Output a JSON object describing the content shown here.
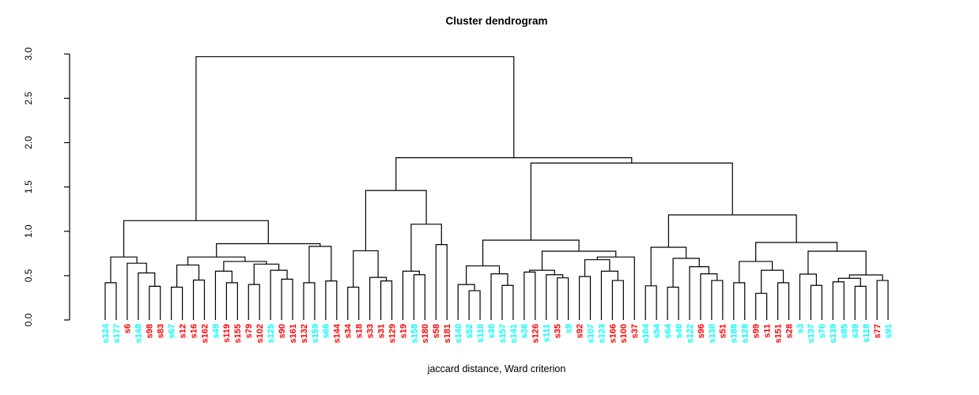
{
  "chart_data": {
    "type": "dendrogram",
    "title": "Cluster dendrogram",
    "xlabel": "jaccard distance, Ward criterion",
    "ylabel": "",
    "ylim": [
      0,
      3
    ],
    "yticks": [
      "0.0",
      "0.5",
      "1.0",
      "1.5",
      "2.0",
      "2.5",
      "3.0"
    ],
    "grid": false,
    "legend": "none",
    "label_colors": {
      "cluster_a": "#00FFFF",
      "cluster_b": "#FF0000"
    },
    "line_color": "#000000",
    "leaves": [
      {
        "label": "s124",
        "color": "#00FFFF"
      },
      {
        "label": "s177",
        "color": "#00FFFF"
      },
      {
        "label": "s6",
        "color": "#FF0000"
      },
      {
        "label": "s148",
        "color": "#00FFFF"
      },
      {
        "label": "s98",
        "color": "#FF0000"
      },
      {
        "label": "s83",
        "color": "#FF0000"
      },
      {
        "label": "s67",
        "color": "#00FFFF"
      },
      {
        "label": "s12",
        "color": "#FF0000"
      },
      {
        "label": "s16",
        "color": "#FF0000"
      },
      {
        "label": "s162",
        "color": "#FF0000"
      },
      {
        "label": "s49",
        "color": "#00FFFF"
      },
      {
        "label": "s119",
        "color": "#FF0000"
      },
      {
        "label": "s155",
        "color": "#FF0000"
      },
      {
        "label": "s79",
        "color": "#FF0000"
      },
      {
        "label": "s102",
        "color": "#FF0000"
      },
      {
        "label": "s125",
        "color": "#00FFFF"
      },
      {
        "label": "s90",
        "color": "#FF0000"
      },
      {
        "label": "s161",
        "color": "#FF0000"
      },
      {
        "label": "s132",
        "color": "#FF0000"
      },
      {
        "label": "s159",
        "color": "#00FFFF"
      },
      {
        "label": "s66",
        "color": "#00FFFF"
      },
      {
        "label": "s144",
        "color": "#FF0000"
      },
      {
        "label": "s34",
        "color": "#FF0000"
      },
      {
        "label": "s18",
        "color": "#FF0000"
      },
      {
        "label": "s33",
        "color": "#FF0000"
      },
      {
        "label": "s31",
        "color": "#FF0000"
      },
      {
        "label": "s129",
        "color": "#FF0000"
      },
      {
        "label": "s19",
        "color": "#FF0000"
      },
      {
        "label": "s158",
        "color": "#00FFFF"
      },
      {
        "label": "s180",
        "color": "#FF0000"
      },
      {
        "label": "s58",
        "color": "#FF0000"
      },
      {
        "label": "s181",
        "color": "#FF0000"
      },
      {
        "label": "s140",
        "color": "#00FFFF"
      },
      {
        "label": "s52",
        "color": "#00FFFF"
      },
      {
        "label": "s110",
        "color": "#00FFFF"
      },
      {
        "label": "s30",
        "color": "#00FFFF"
      },
      {
        "label": "s157",
        "color": "#00FFFF"
      },
      {
        "label": "s141",
        "color": "#00FFFF"
      },
      {
        "label": "s36",
        "color": "#00FFFF"
      },
      {
        "label": "s126",
        "color": "#FF0000"
      },
      {
        "label": "s111",
        "color": "#00FFFF"
      },
      {
        "label": "s35",
        "color": "#FF0000"
      },
      {
        "label": "s9",
        "color": "#00FFFF"
      },
      {
        "label": "s92",
        "color": "#FF0000"
      },
      {
        "label": "s107",
        "color": "#00FFFF"
      },
      {
        "label": "s123",
        "color": "#00FFFF"
      },
      {
        "label": "s166",
        "color": "#FF0000"
      },
      {
        "label": "s100",
        "color": "#FF0000"
      },
      {
        "label": "s37",
        "color": "#FF0000"
      },
      {
        "label": "s104",
        "color": "#00FFFF"
      },
      {
        "label": "s54",
        "color": "#00FFFF"
      },
      {
        "label": "s64",
        "color": "#00FFFF"
      },
      {
        "label": "s40",
        "color": "#00FFFF"
      },
      {
        "label": "s122",
        "color": "#00FFFF"
      },
      {
        "label": "s96",
        "color": "#FF0000"
      },
      {
        "label": "s130",
        "color": "#00FFFF"
      },
      {
        "label": "s51",
        "color": "#FF0000"
      },
      {
        "label": "s188",
        "color": "#00FFFF"
      },
      {
        "label": "s128",
        "color": "#00FFFF"
      },
      {
        "label": "s99",
        "color": "#FF0000"
      },
      {
        "label": "s11",
        "color": "#FF0000"
      },
      {
        "label": "s151",
        "color": "#FF0000"
      },
      {
        "label": "s28",
        "color": "#FF0000"
      },
      {
        "label": "s3",
        "color": "#00FFFF"
      },
      {
        "label": "s137",
        "color": "#00FFFF"
      },
      {
        "label": "s70",
        "color": "#00FFFF"
      },
      {
        "label": "s139",
        "color": "#00FFFF"
      },
      {
        "label": "s85",
        "color": "#00FFFF"
      },
      {
        "label": "s39",
        "color": "#00FFFF"
      },
      {
        "label": "s118",
        "color": "#00FFFF"
      },
      {
        "label": "s77",
        "color": "#FF0000"
      },
      {
        "label": "s91",
        "color": "#00FFFF"
      }
    ],
    "tree": [
      2.97,
      [
        1.12,
        [
          0.71,
          [
            0.42,
            "s124",
            "s177"
          ],
          [
            0.64,
            "s6",
            [
              0.53,
              "s148",
              [
                0.38,
                "s98",
                "s83"
              ]
            ]
          ]
        ],
        [
          0.86,
          [
            0.71,
            [
              0.62,
              [
                0.37,
                "s67",
                "s12"
              ],
              [
                0.45,
                "s16",
                "s162"
              ]
            ],
            [
              0.66,
              [
                0.55,
                "s49",
                [
                  0.42,
                  "s119",
                  "s155"
                ]
              ],
              [
                0.63,
                [
                  0.4,
                  "s79",
                  "s102"
                ],
                [
                  0.56,
                  "s125",
                  [
                    0.46,
                    "s90",
                    "s161"
                  ]
                ]
              ]
            ]
          ],
          [
            0.83,
            [
              0.42,
              "s132",
              "s159"
            ],
            [
              0.44,
              "s66",
              "s144"
            ]
          ]
        ]
      ],
      [
        1.83,
        [
          1.46,
          [
            0.78,
            [
              0.37,
              "s34",
              "s18"
            ],
            [
              0.48,
              "s33",
              [
                0.44,
                "s31",
                "s129"
              ]
            ]
          ],
          [
            1.08,
            [
              0.55,
              "s19",
              [
                0.51,
                "s158",
                "s180"
              ]
            ],
            [
              0.85,
              "s58",
              "s181"
            ]
          ]
        ],
        [
          1.77,
          [
            0.9,
            [
              0.61,
              [
                0.4,
                "s140",
                [
                  0.33,
                  "s52",
                  "s110"
                ]
              ],
              [
                0.52,
                "s30",
                [
                  0.39,
                  "s157",
                  "s141"
                ]
              ]
            ],
            [
              0.775,
              [
                0.56,
                [
                  0.54,
                  "s36",
                  "s126"
                ],
                [
                  0.51,
                  "s111",
                  [
                    0.475,
                    "s35",
                    "s9"
                  ]
                ]
              ],
              [
                0.71,
                [
                  0.68,
                  [
                    0.49,
                    "s92",
                    "s107"
                  ],
                  [
                    0.55,
                    "s123",
                    [
                      0.445,
                      "s166",
                      "s100"
                    ]
                  ]
                ],
                "s37"
              ]
            ]
          ],
          [
            1.185,
            [
              0.82,
              [
                0.385,
                "s104",
                "s54"
              ],
              [
                0.695,
                [
                  0.37,
                  "s64",
                  "s40"
                ],
                [
                  0.6,
                  "s122",
                  [
                    0.52,
                    "s96",
                    [
                      0.445,
                      "s130",
                      "s51"
                    ]
                  ]
                ]
              ]
            ],
            [
              0.874,
              [
                0.66,
                [
                  0.42,
                  "s188",
                  "s128"
                ],
                [
                  0.56,
                  [
                    0.3,
                    "s99",
                    "s11"
                  ],
                  [
                    0.42,
                    "s151",
                    "s28"
                  ]
                ]
              ],
              [
                0.775,
                [
                  0.517,
                  "s3",
                  [
                    0.39,
                    "s137",
                    "s70"
                  ]
                ],
                [
                  0.508,
                  [
                    0.47,
                    [
                      0.43,
                      "s139",
                      "s85"
                    ],
                    [
                      0.38,
                      "s39",
                      "s118"
                    ]
                  ],
                  [
                    0.445,
                    "s77",
                    "s91"
                  ]
                ]
              ]
            ]
          ]
        ]
      ]
    ]
  }
}
